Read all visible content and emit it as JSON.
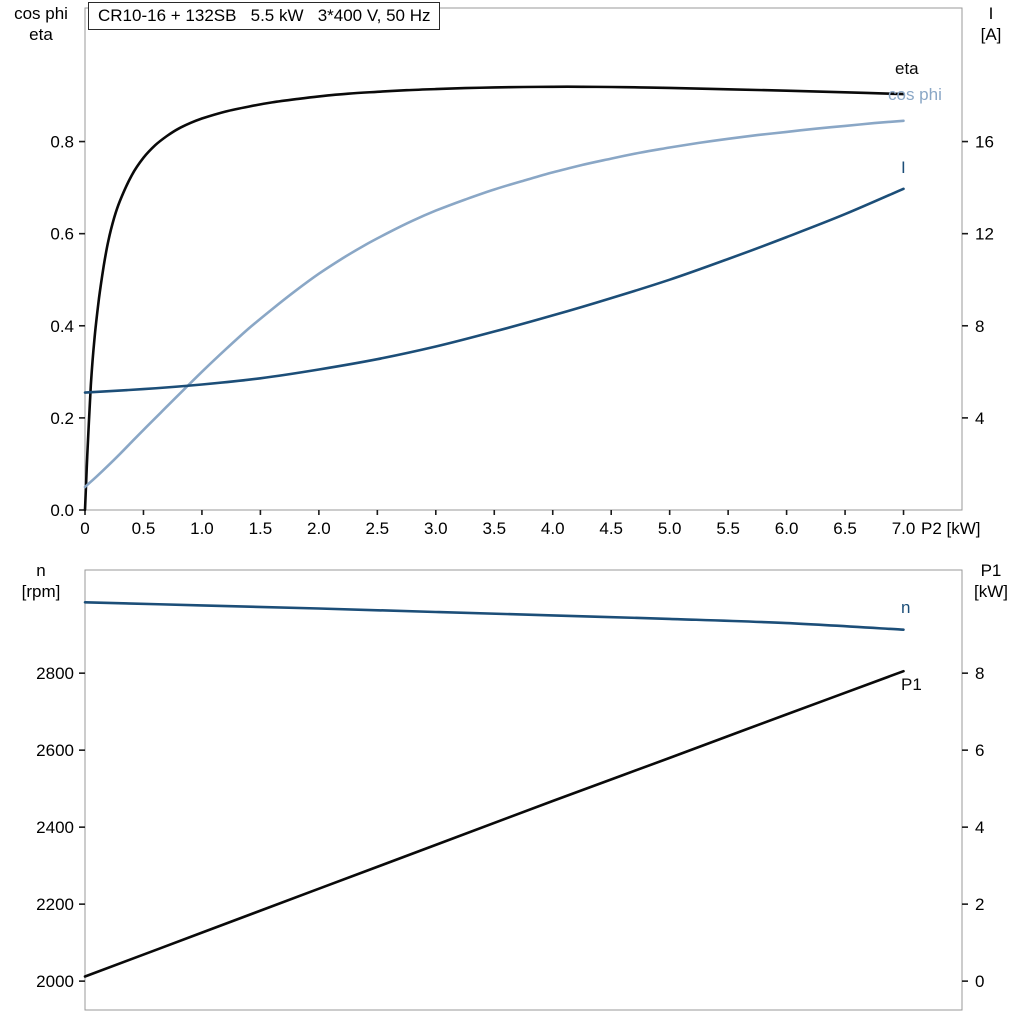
{
  "chart_data": [
    {
      "type": "line",
      "title": "CR10-16 + 132SB   5.5 kW   3*400 V, 50 Hz",
      "frame_color": "#999999",
      "tick_color": "#1a1a1a",
      "y_left_label_lines": [
        "cos phi",
        "eta"
      ],
      "y_right_label_lines": [
        "I",
        "[A]"
      ],
      "x_axis": {
        "label": "P2 [kW]",
        "end_label": "P2 [kW]",
        "min": 0,
        "max": 7.5,
        "ticks": [
          {
            "v": 0,
            "label": "0"
          },
          {
            "v": 0.5,
            "label": "0.5"
          },
          {
            "v": 1.0,
            "label": "1.0"
          },
          {
            "v": 1.5,
            "label": "1.5"
          },
          {
            "v": 2.0,
            "label": "2.0"
          },
          {
            "v": 2.5,
            "label": "2.5"
          },
          {
            "v": 3.0,
            "label": "3.0"
          },
          {
            "v": 3.5,
            "label": "3.5"
          },
          {
            "v": 4.0,
            "label": "4.0"
          },
          {
            "v": 4.5,
            "label": "4.5"
          },
          {
            "v": 5.0,
            "label": "5.0"
          },
          {
            "v": 5.5,
            "label": "5.5"
          },
          {
            "v": 6.0,
            "label": "6.0"
          },
          {
            "v": 6.5,
            "label": "6.5"
          },
          {
            "v": 7.0,
            "label": "7.0"
          }
        ]
      },
      "y_left": {
        "label": "cos phi / eta",
        "min": 0,
        "max": 1.09,
        "ticks": [
          {
            "v": 0.0,
            "label": "0.0"
          },
          {
            "v": 0.2,
            "label": "0.2"
          },
          {
            "v": 0.4,
            "label": "0.4"
          },
          {
            "v": 0.6,
            "label": "0.6"
          },
          {
            "v": 0.8,
            "label": "0.8"
          }
        ]
      },
      "y_right": {
        "label": "I [A]",
        "min": 0,
        "max": 21.8,
        "ticks": [
          {
            "v": 4,
            "label": "4"
          },
          {
            "v": 8,
            "label": "8"
          },
          {
            "v": 12,
            "label": "12"
          },
          {
            "v": 16,
            "label": "16"
          }
        ]
      },
      "series": [
        {
          "id": "eta",
          "name": "eta",
          "axis": "left",
          "color": "#0a0a0a",
          "width": 2.6,
          "points": [
            [
              0,
              0
            ],
            [
              0.02,
              0.12
            ],
            [
              0.05,
              0.27
            ],
            [
              0.08,
              0.37
            ],
            [
              0.12,
              0.46
            ],
            [
              0.16,
              0.53
            ],
            [
              0.2,
              0.585
            ],
            [
              0.25,
              0.635
            ],
            [
              0.3,
              0.672
            ],
            [
              0.4,
              0.727
            ],
            [
              0.5,
              0.765
            ],
            [
              0.6,
              0.792
            ],
            [
              0.7,
              0.812
            ],
            [
              0.8,
              0.828
            ],
            [
              0.9,
              0.84
            ],
            [
              1.0,
              0.85
            ],
            [
              1.2,
              0.865
            ],
            [
              1.4,
              0.876
            ],
            [
              1.6,
              0.885
            ],
            [
              1.8,
              0.892
            ],
            [
              2.0,
              0.898
            ],
            [
              2.25,
              0.904
            ],
            [
              2.5,
              0.908
            ],
            [
              2.75,
              0.9115
            ],
            [
              3.0,
              0.914
            ],
            [
              3.25,
              0.916
            ],
            [
              3.5,
              0.9175
            ],
            [
              3.75,
              0.9185
            ],
            [
              4.0,
              0.919
            ],
            [
              4.25,
              0.919
            ],
            [
              4.5,
              0.9185
            ],
            [
              4.75,
              0.9175
            ],
            [
              5.0,
              0.9165
            ],
            [
              5.5,
              0.9135
            ],
            [
              6.0,
              0.9105
            ],
            [
              6.5,
              0.907
            ],
            [
              7.0,
              0.903
            ]
          ]
        },
        {
          "id": "cos_phi",
          "name": "cos phi",
          "axis": "left",
          "color": "#8aa7c6",
          "width": 2.6,
          "points": [
            [
              0,
              0.05
            ],
            [
              0.1,
              0.073
            ],
            [
              0.2,
              0.097
            ],
            [
              0.3,
              0.122
            ],
            [
              0.4,
              0.148
            ],
            [
              0.5,
              0.174
            ],
            [
              0.65,
              0.212
            ],
            [
              0.8,
              0.25
            ],
            [
              1.0,
              0.3
            ],
            [
              1.2,
              0.348
            ],
            [
              1.4,
              0.394
            ],
            [
              1.6,
              0.436
            ],
            [
              1.8,
              0.476
            ],
            [
              2.0,
              0.513
            ],
            [
              2.2,
              0.546
            ],
            [
              2.4,
              0.576
            ],
            [
              2.6,
              0.603
            ],
            [
              2.8,
              0.628
            ],
            [
              3.0,
              0.65
            ],
            [
              3.25,
              0.674
            ],
            [
              3.5,
              0.696
            ],
            [
              3.75,
              0.715
            ],
            [
              4.0,
              0.733
            ],
            [
              4.25,
              0.749
            ],
            [
              4.5,
              0.763
            ],
            [
              4.75,
              0.776
            ],
            [
              5.0,
              0.787
            ],
            [
              5.25,
              0.797
            ],
            [
              5.5,
              0.806
            ],
            [
              5.75,
              0.814
            ],
            [
              6.0,
              0.821
            ],
            [
              6.25,
              0.828
            ],
            [
              6.5,
              0.834
            ],
            [
              6.75,
              0.84
            ],
            [
              7.0,
              0.845
            ]
          ]
        },
        {
          "id": "current",
          "name": "I",
          "axis": "right",
          "color": "#1c4e78",
          "width": 2.6,
          "points": [
            [
              0,
              5.1
            ],
            [
              0.5,
              5.25
            ],
            [
              1.0,
              5.45
            ],
            [
              1.5,
              5.72
            ],
            [
              2.0,
              6.1
            ],
            [
              2.5,
              6.55
            ],
            [
              3.0,
              7.1
            ],
            [
              3.5,
              7.75
            ],
            [
              4.0,
              8.45
            ],
            [
              4.5,
              9.2
            ],
            [
              5.0,
              10.0
            ],
            [
              5.5,
              10.9
            ],
            [
              6.0,
              11.85
            ],
            [
              6.5,
              12.85
            ],
            [
              7.0,
              13.95
            ]
          ]
        }
      ]
    },
    {
      "type": "line",
      "title": "",
      "frame_color": "#999999",
      "tick_color": "#1a1a1a",
      "y_left_label_lines": [
        "n",
        "[rpm]"
      ],
      "y_right_label_lines": [
        "P1",
        "[kW]"
      ],
      "x_axis": {
        "label": "P2 [kW]",
        "min": 0,
        "max": 7.5,
        "ticks": []
      },
      "y_left": {
        "label": "n [rpm]",
        "min": 1925,
        "max": 3068,
        "ticks": [
          {
            "v": 2000,
            "label": "2000"
          },
          {
            "v": 2200,
            "label": "2200"
          },
          {
            "v": 2400,
            "label": "2400"
          },
          {
            "v": 2600,
            "label": "2600"
          },
          {
            "v": 2800,
            "label": "2800"
          }
        ]
      },
      "y_right": {
        "label": "P1 [kW]",
        "min": -0.75,
        "max": 10.68,
        "ticks": [
          {
            "v": 0,
            "label": "0"
          },
          {
            "v": 2,
            "label": "2"
          },
          {
            "v": 4,
            "label": "4"
          },
          {
            "v": 6,
            "label": "6"
          },
          {
            "v": 8,
            "label": "8"
          }
        ]
      },
      "series": [
        {
          "id": "n",
          "name": "n",
          "axis": "left",
          "color": "#1c4e78",
          "width": 2.6,
          "points": [
            [
              0,
              2984
            ],
            [
              1,
              2976
            ],
            [
              2,
              2968
            ],
            [
              3,
              2959
            ],
            [
              4,
              2950
            ],
            [
              5,
              2941
            ],
            [
              6,
              2930
            ],
            [
              7,
              2913
            ]
          ]
        },
        {
          "id": "p1",
          "name": "P1",
          "axis": "right",
          "color": "#0a0a0a",
          "width": 2.6,
          "points": [
            [
              0,
              0.12
            ],
            [
              1,
              1.26
            ],
            [
              2,
              2.4
            ],
            [
              3,
              3.54
            ],
            [
              4,
              4.68
            ],
            [
              5,
              5.8
            ],
            [
              6,
              6.93
            ],
            [
              7,
              8.05
            ]
          ]
        }
      ]
    }
  ]
}
